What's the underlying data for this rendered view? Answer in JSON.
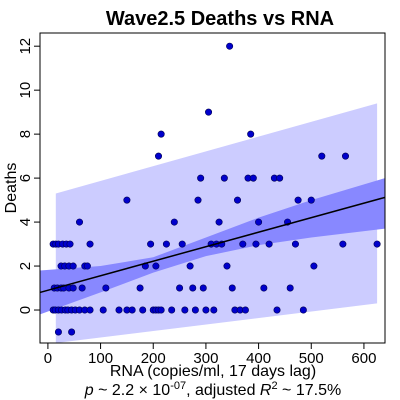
{
  "chart_data": {
    "type": "scatter",
    "title": "Wave2.5 Deaths vs RNA",
    "xlabel": "RNA (copies/ml, 17 days lag)",
    "ylabel": "Deaths",
    "xlim": [
      -15,
      640
    ],
    "ylim": [
      -1.5,
      12.6
    ],
    "x_ticks": [
      0,
      100,
      200,
      300,
      400,
      500,
      600
    ],
    "y_ticks": [
      0,
      2,
      4,
      6,
      8,
      10,
      12
    ],
    "caption": {
      "p_prefix": "p",
      "p_middle": " ~ 2.2 × 10",
      "p_exp": "-07",
      "r2_middle": ", adjusted ",
      "r2_symbol": "R",
      "r2_exp": "2",
      "r2_value": " ~ 17.5%"
    },
    "regression": {
      "intercept": 0.9,
      "slope": 0.0066
    },
    "confidence_band": {
      "x": [
        -15,
        100,
        200,
        300,
        400,
        500,
        640
      ],
      "lower": [
        -0.2,
        0.8,
        1.7,
        2.45,
        2.95,
        3.3,
        3.7
      ],
      "upper": [
        1.8,
        2.0,
        2.4,
        3.3,
        4.2,
        5.0,
        6.0
      ]
    },
    "prediction_band": {
      "x": [
        15,
        625
      ],
      "lower": [
        -3.2,
        0.3
      ],
      "upper": [
        5.3,
        9.4
      ]
    },
    "points": [
      {
        "x": 10,
        "y": 3
      },
      {
        "x": 15,
        "y": 3
      },
      {
        "x": 20,
        "y": 3
      },
      {
        "x": 28,
        "y": 3
      },
      {
        "x": 35,
        "y": 3
      },
      {
        "x": 42,
        "y": 3
      },
      {
        "x": 12,
        "y": 1
      },
      {
        "x": 18,
        "y": 1
      },
      {
        "x": 25,
        "y": 1
      },
      {
        "x": 30,
        "y": 1
      },
      {
        "x": 40,
        "y": 1
      },
      {
        "x": 48,
        "y": 1
      },
      {
        "x": 10,
        "y": 0
      },
      {
        "x": 14,
        "y": 0
      },
      {
        "x": 20,
        "y": 0
      },
      {
        "x": 26,
        "y": 0
      },
      {
        "x": 33,
        "y": 0
      },
      {
        "x": 38,
        "y": 0
      },
      {
        "x": 45,
        "y": 0
      },
      {
        "x": 52,
        "y": 0
      },
      {
        "x": 60,
        "y": 0
      },
      {
        "x": 70,
        "y": 0
      },
      {
        "x": 80,
        "y": 0
      },
      {
        "x": 25,
        "y": 2
      },
      {
        "x": 32,
        "y": 2
      },
      {
        "x": 40,
        "y": 2
      },
      {
        "x": 48,
        "y": 2
      },
      {
        "x": 20,
        "y": -1
      },
      {
        "x": 45,
        "y": -1
      },
      {
        "x": 60,
        "y": 4
      },
      {
        "x": 70,
        "y": 2
      },
      {
        "x": 75,
        "y": 2
      },
      {
        "x": 80,
        "y": 3
      },
      {
        "x": 65,
        "y": 1
      },
      {
        "x": 110,
        "y": 1
      },
      {
        "x": 105,
        "y": 0
      },
      {
        "x": 135,
        "y": 0
      },
      {
        "x": 150,
        "y": 0
      },
      {
        "x": 160,
        "y": 0
      },
      {
        "x": 150,
        "y": 5
      },
      {
        "x": 175,
        "y": 1
      },
      {
        "x": 180,
        "y": 0
      },
      {
        "x": 185,
        "y": 2
      },
      {
        "x": 195,
        "y": 3
      },
      {
        "x": 200,
        "y": 0
      },
      {
        "x": 205,
        "y": 0
      },
      {
        "x": 210,
        "y": 0
      },
      {
        "x": 215,
        "y": 0
      },
      {
        "x": 205,
        "y": 2
      },
      {
        "x": 210,
        "y": 7
      },
      {
        "x": 215,
        "y": 8
      },
      {
        "x": 225,
        "y": 3
      },
      {
        "x": 235,
        "y": 0
      },
      {
        "x": 240,
        "y": 4
      },
      {
        "x": 250,
        "y": 1
      },
      {
        "x": 255,
        "y": 3
      },
      {
        "x": 260,
        "y": 0
      },
      {
        "x": 270,
        "y": 2
      },
      {
        "x": 275,
        "y": 1
      },
      {
        "x": 280,
        "y": 0
      },
      {
        "x": 285,
        "y": 5
      },
      {
        "x": 290,
        "y": 6
      },
      {
        "x": 295,
        "y": 1
      },
      {
        "x": 300,
        "y": 0
      },
      {
        "x": 305,
        "y": 9
      },
      {
        "x": 310,
        "y": 3
      },
      {
        "x": 315,
        "y": 0
      },
      {
        "x": 320,
        "y": 3
      },
      {
        "x": 325,
        "y": 4
      },
      {
        "x": 330,
        "y": 3
      },
      {
        "x": 335,
        "y": 6
      },
      {
        "x": 340,
        "y": 2
      },
      {
        "x": 345,
        "y": 12
      },
      {
        "x": 350,
        "y": 1
      },
      {
        "x": 355,
        "y": 0
      },
      {
        "x": 360,
        "y": 5
      },
      {
        "x": 365,
        "y": 0
      },
      {
        "x": 370,
        "y": 3
      },
      {
        "x": 375,
        "y": 0
      },
      {
        "x": 380,
        "y": 6
      },
      {
        "x": 385,
        "y": 8
      },
      {
        "x": 390,
        "y": 6
      },
      {
        "x": 395,
        "y": 3
      },
      {
        "x": 400,
        "y": 4
      },
      {
        "x": 410,
        "y": 1
      },
      {
        "x": 420,
        "y": 3
      },
      {
        "x": 430,
        "y": 6
      },
      {
        "x": 435,
        "y": 0
      },
      {
        "x": 440,
        "y": 6
      },
      {
        "x": 455,
        "y": 4
      },
      {
        "x": 460,
        "y": 1
      },
      {
        "x": 470,
        "y": 3
      },
      {
        "x": 475,
        "y": 5
      },
      {
        "x": 485,
        "y": 0
      },
      {
        "x": 500,
        "y": 5
      },
      {
        "x": 505,
        "y": 2
      },
      {
        "x": 520,
        "y": 7
      },
      {
        "x": 560,
        "y": 3
      },
      {
        "x": 565,
        "y": 7
      },
      {
        "x": 625,
        "y": 3
      }
    ]
  }
}
